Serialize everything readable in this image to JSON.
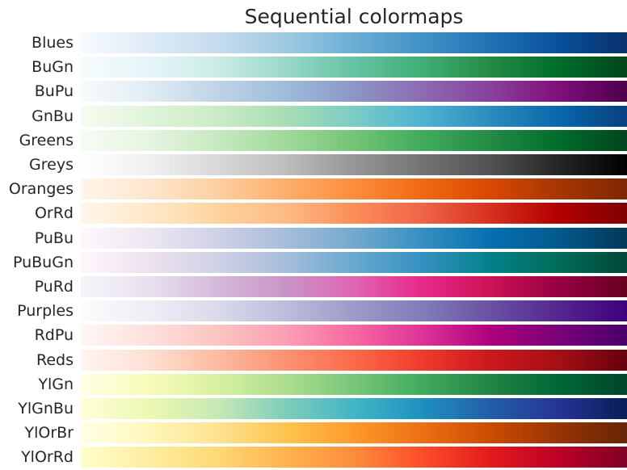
{
  "chart_data": {
    "type": "heatmap",
    "title": "Sequential colormaps",
    "xlabel": "",
    "ylabel": "",
    "grid": false,
    "colormaps": [
      {
        "name": "Blues",
        "colors": [
          "#f7fbff",
          "#deebf7",
          "#c6dbef",
          "#9ecae1",
          "#6baed6",
          "#4292c6",
          "#2171b5",
          "#08519c",
          "#08306b"
        ]
      },
      {
        "name": "BuGn",
        "colors": [
          "#f7fcfd",
          "#e5f5f9",
          "#ccece6",
          "#99d8c9",
          "#66c2a4",
          "#41ae76",
          "#238b45",
          "#006d2c",
          "#00441b"
        ]
      },
      {
        "name": "BuPu",
        "colors": [
          "#f7fcfd",
          "#e0ecf4",
          "#bfd3e6",
          "#9ebcda",
          "#8c96c6",
          "#8c6bb1",
          "#88419d",
          "#810f7c",
          "#4d004b"
        ]
      },
      {
        "name": "GnBu",
        "colors": [
          "#f7fcf0",
          "#e0f3db",
          "#ccebc5",
          "#a8ddb5",
          "#7bccc4",
          "#4eb3d3",
          "#2b8cbe",
          "#0868ac",
          "#084081"
        ]
      },
      {
        "name": "Greens",
        "colors": [
          "#f7fcf5",
          "#e5f5e0",
          "#c7e9c0",
          "#a1d99b",
          "#74c476",
          "#41ab5d",
          "#238b45",
          "#006d2c",
          "#00441b"
        ]
      },
      {
        "name": "Greys",
        "colors": [
          "#ffffff",
          "#f0f0f0",
          "#d9d9d9",
          "#bdbdbd",
          "#969696",
          "#737373",
          "#525252",
          "#252525",
          "#000000"
        ]
      },
      {
        "name": "Oranges",
        "colors": [
          "#fff5eb",
          "#fee6ce",
          "#fdd0a2",
          "#fdae6b",
          "#fd8d3c",
          "#f16913",
          "#d94801",
          "#a63603",
          "#7f2704"
        ]
      },
      {
        "name": "OrRd",
        "colors": [
          "#fff7ec",
          "#fee8c8",
          "#fdd49e",
          "#fdbb84",
          "#fc8d59",
          "#ef6548",
          "#d7301f",
          "#b30000",
          "#7f0000"
        ]
      },
      {
        "name": "PuBu",
        "colors": [
          "#fff7fb",
          "#ece7f2",
          "#d0d1e6",
          "#a6bddb",
          "#74a9cf",
          "#3690c0",
          "#0570b0",
          "#045a8d",
          "#023858"
        ]
      },
      {
        "name": "PuBuGn",
        "colors": [
          "#fff7fb",
          "#ece2f0",
          "#d0d1e6",
          "#a6bddb",
          "#67a9cf",
          "#3690c0",
          "#02818a",
          "#016c59",
          "#014636"
        ]
      },
      {
        "name": "PuRd",
        "colors": [
          "#f7f4f9",
          "#e7e1ef",
          "#d4b9da",
          "#c994c7",
          "#df65b0",
          "#e7298a",
          "#ce1256",
          "#980043",
          "#67001f"
        ]
      },
      {
        "name": "Purples",
        "colors": [
          "#fcfbfd",
          "#efedf5",
          "#dadaeb",
          "#bcbddc",
          "#9e9ac8",
          "#807dba",
          "#6a51a3",
          "#54278f",
          "#3f007d"
        ]
      },
      {
        "name": "RdPu",
        "colors": [
          "#fff7f3",
          "#fde0dd",
          "#fcc5c0",
          "#fa9fb5",
          "#f768a1",
          "#dd3497",
          "#ae017e",
          "#7a0177",
          "#49006a"
        ]
      },
      {
        "name": "Reds",
        "colors": [
          "#fff5f0",
          "#fee0d2",
          "#fcbba1",
          "#fc9272",
          "#fb6a4a",
          "#ef3b2c",
          "#cb181d",
          "#a50f15",
          "#67000d"
        ]
      },
      {
        "name": "YlGn",
        "colors": [
          "#ffffe5",
          "#f7fcb9",
          "#d9f0a3",
          "#addd8e",
          "#78c679",
          "#41ab5d",
          "#238443",
          "#006837",
          "#004529"
        ]
      },
      {
        "name": "YlGnBu",
        "colors": [
          "#ffffd9",
          "#edf8b1",
          "#c7e9b4",
          "#7fcdbb",
          "#41b6c4",
          "#1d91c0",
          "#225ea8",
          "#253494",
          "#081d58"
        ]
      },
      {
        "name": "YlOrBr",
        "colors": [
          "#ffffe5",
          "#fff7bc",
          "#fee391",
          "#fec44f",
          "#fe9929",
          "#ec7014",
          "#cc4c02",
          "#993404",
          "#662506"
        ]
      },
      {
        "name": "YlOrRd",
        "colors": [
          "#ffffcc",
          "#ffeda0",
          "#fed976",
          "#feb24c",
          "#fd8d3c",
          "#fc4e2a",
          "#e31a1c",
          "#bd0026",
          "#800026"
        ]
      }
    ]
  }
}
